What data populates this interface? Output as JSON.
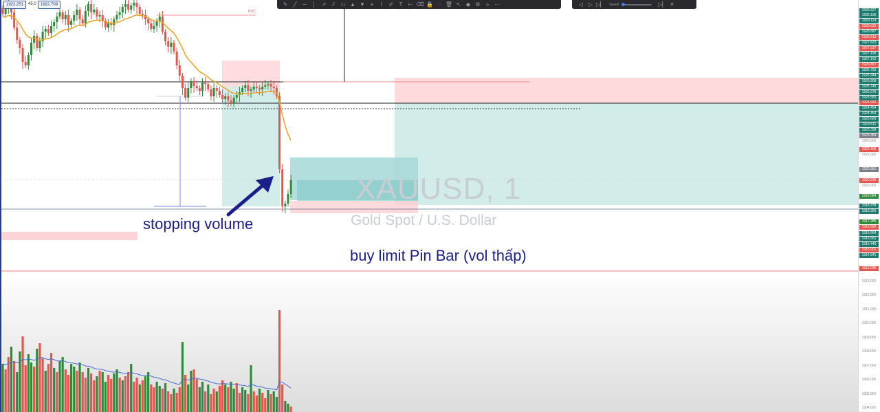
{
  "chart_info": {
    "open_price": "1922.251",
    "indicator_value": "45.0",
    "current_price": "1922.709",
    "poc_label": "POC",
    "symbol": "XAUUSD, 1",
    "description": "Gold Spot / U.S. Dollar"
  },
  "annotations": {
    "stopping_volume": "stopping volume",
    "buy_limit": "buy limit Pin Bar (vol thấp)"
  },
  "toolbar": {
    "drawing_tools": [
      "pencil-icon",
      "trend-line-icon",
      "horizontal-line-icon",
      "vertical-line-icon",
      "ray-icon",
      "channel-icon",
      "rectangle-icon",
      "long-position-icon",
      "short-position-icon",
      "fib-icon",
      "pattern-icon",
      "brush-icon",
      "text-icon",
      "measure-icon",
      "eraser-icon",
      "lock-icon",
      "hide-icon",
      "trash-icon",
      "cursor-icon",
      "magnet-icon",
      "gear-icon",
      "collapse-icon",
      "more-icon"
    ],
    "replay_speed_label": "Speed"
  },
  "price_axis": {
    "labels": [
      {
        "text": "1930.627",
        "color": "#1b7a6e"
      },
      {
        "text": "1930.196",
        "color": "#1b7a6e"
      },
      {
        "text": "1929.114",
        "color": "#1b7a6e"
      },
      {
        "text": "1928.622",
        "color": "#e5564f"
      },
      {
        "text": "1928.587",
        "color": "#1b7a6e"
      },
      {
        "text": "1928.513",
        "color": "#e5564f"
      },
      {
        "text": "1927.623",
        "color": "#1b7a6e"
      },
      {
        "text": "1927.527",
        "color": "#e5564f"
      },
      {
        "text": "1927.196",
        "color": "#1b7a6e"
      },
      {
        "text": "1927.162",
        "color": "#1b7a6e"
      },
      {
        "text": "1926.867",
        "color": "#e5564f"
      },
      {
        "text": "1926.752",
        "color": "#1b7a6e"
      },
      {
        "text": "1925.944",
        "color": "#1b7a6e"
      },
      {
        "text": "1925.808",
        "color": "#1b7a6e"
      },
      {
        "text": "1925.743",
        "color": "#1b7a6e"
      },
      {
        "text": "1925.679",
        "color": "#1b7a6e"
      },
      {
        "text": "1925.583",
        "color": "#1b7a6e"
      },
      {
        "text": "1924.942",
        "color": "#e5564f"
      },
      {
        "text": "1924.454",
        "color": "#1b7a6e"
      },
      {
        "text": "1924.454",
        "color": "#1b7a6e"
      },
      {
        "text": "1923.669",
        "color": "#1b7a6e"
      },
      {
        "text": "1923.511",
        "color": "#1b7a6e"
      },
      {
        "text": "1923.398",
        "color": "#1b7a6e"
      },
      {
        "text": "1923.384",
        "color": "#7a7e88"
      },
      {
        "text": "1923.000",
        "color": ""
      },
      {
        "text": "1922.405",
        "color": "#e5564f"
      },
      {
        "text": "1922.000",
        "color": ""
      },
      {
        "text": "1920.951",
        "color": "#7a7e88"
      },
      {
        "text": "1920.230",
        "color": "#e5564f"
      },
      {
        "text": "1920.000",
        "color": ""
      },
      {
        "text": "1919.084",
        "color": "#2e8b3a"
      },
      {
        "text": "1918.378",
        "color": "#1b7a6e"
      },
      {
        "text": "1918.356",
        "color": "#1b7a6e"
      },
      {
        "text": "1917.285",
        "color": "#2e8b3a"
      },
      {
        "text": "1916.826",
        "color": "#e5564f"
      },
      {
        "text": "1916.664",
        "color": "#1b7a6e"
      },
      {
        "text": "1916.561",
        "color": "#1b7a6e"
      },
      {
        "text": "1916.449",
        "color": "#1b7a6e"
      },
      {
        "text": "1915.901",
        "color": "#e5564f"
      },
      {
        "text": "1914.841",
        "color": "#1b7a6e"
      },
      {
        "text": "1913.935",
        "color": "#e5564f"
      },
      {
        "text": "1913.000",
        "color": ""
      },
      {
        "text": "1912.000",
        "color": ""
      },
      {
        "text": "1911.000",
        "color": ""
      },
      {
        "text": "1910.000",
        "color": ""
      },
      {
        "text": "1909.000",
        "color": ""
      },
      {
        "text": "1908.000",
        "color": ""
      },
      {
        "text": "1907.000",
        "color": ""
      },
      {
        "text": "1906.000",
        "color": ""
      },
      {
        "text": "1905.000",
        "color": ""
      },
      {
        "text": "1904.000",
        "color": ""
      }
    ]
  },
  "colors": {
    "bull": "#2e8b3a",
    "bear": "#e5564f",
    "ema": "#f0a020",
    "annotation": "#1c1f8a",
    "profit_zone": "#b2dfdb",
    "loss_zone": "#ffcdd2"
  }
}
